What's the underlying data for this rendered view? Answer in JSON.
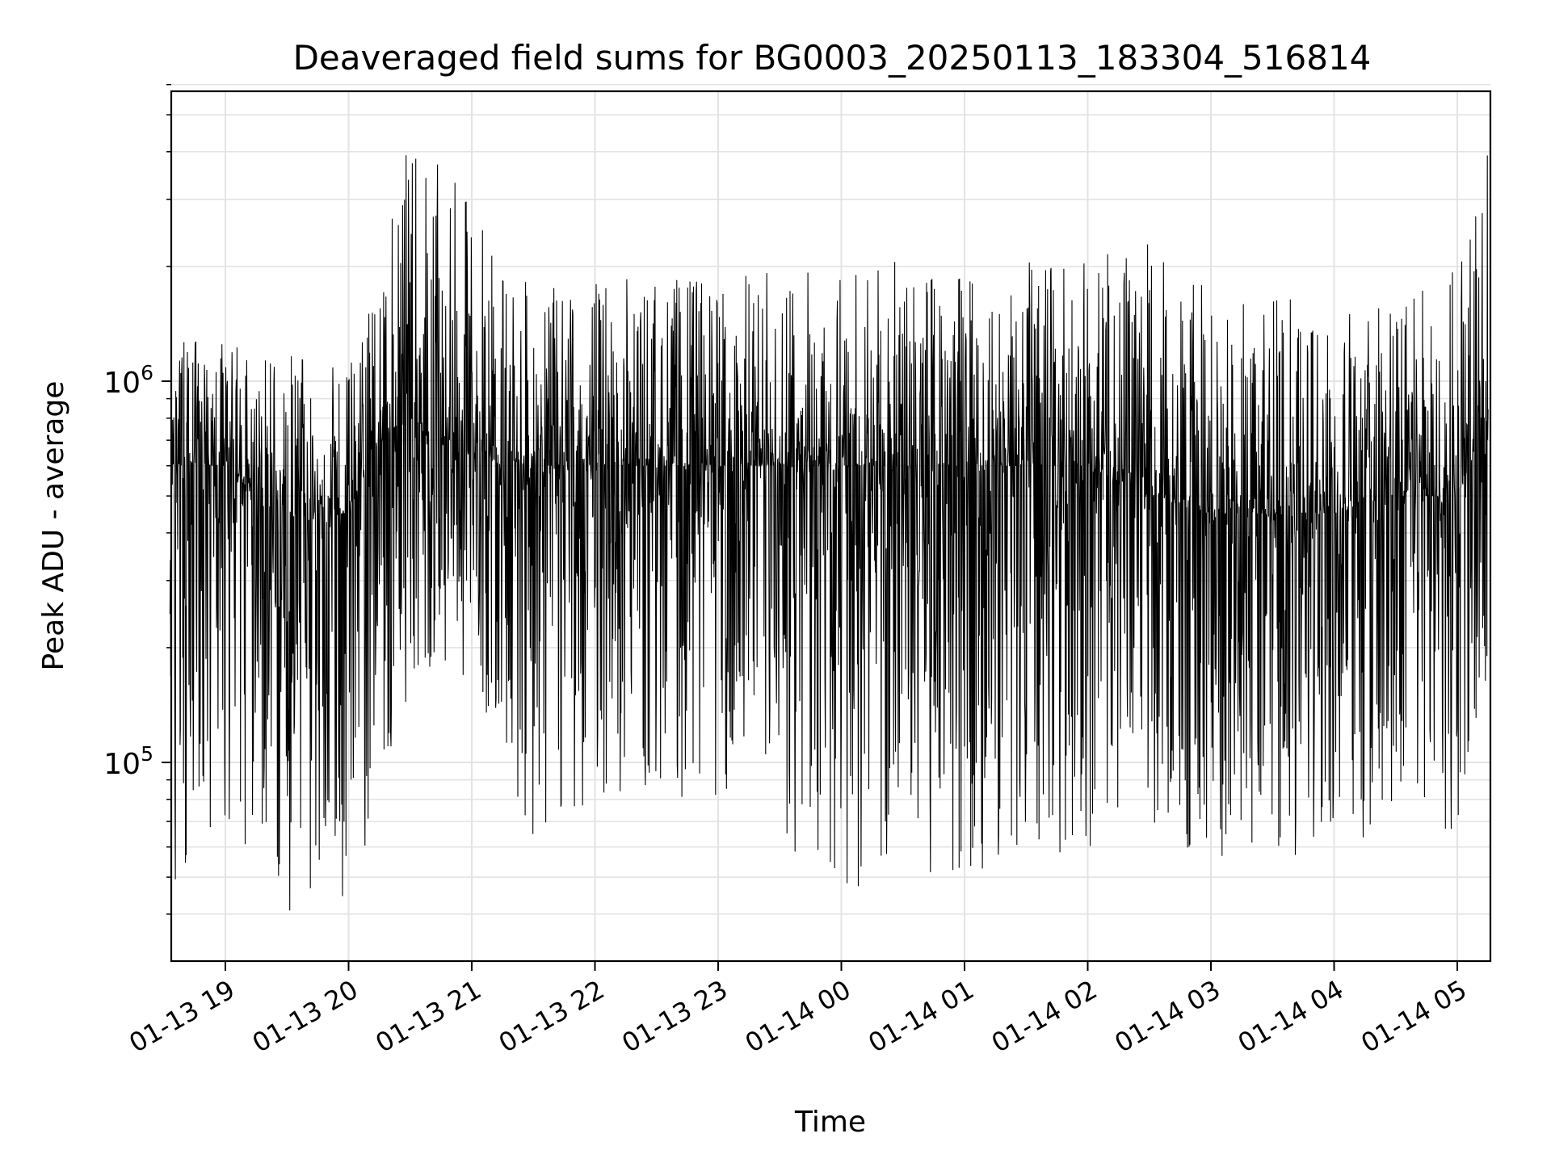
{
  "chart_data": {
    "type": "line",
    "title": "Deaveraged field sums for BG0003_20250113_183304_516814",
    "xlabel": "Time",
    "ylabel": "Peak ADU - average",
    "yscale": "log",
    "ylim": [
      33000,
      6200000
    ],
    "xlim": [
      "01-13 18:33",
      "01-14 05:15"
    ],
    "grid": true,
    "line_color": "#000000",
    "x_ticks": [
      {
        "label": "01-13 19",
        "hour": 19
      },
      {
        "label": "01-13 20",
        "hour": 20
      },
      {
        "label": "01-13 21",
        "hour": 21
      },
      {
        "label": "01-13 22",
        "hour": 22
      },
      {
        "label": "01-13 23",
        "hour": 23
      },
      {
        "label": "01-14 00",
        "hour": 24
      },
      {
        "label": "01-14 01",
        "hour": 25
      },
      {
        "label": "01-14 02",
        "hour": 26
      },
      {
        "label": "01-14 03",
        "hour": 27
      },
      {
        "label": "01-14 04",
        "hour": 28
      },
      {
        "label": "01-14 05",
        "hour": 29
      }
    ],
    "y_ticks": [
      {
        "base": "10",
        "exp": "5",
        "value": 100000
      },
      {
        "base": "10",
        "exp": "6",
        "value": 1000000
      }
    ],
    "series_envelope": {
      "description_x": [
        "01-13 18:33",
        "01-13 19:00",
        "01-13 19:30",
        "01-13 20:00",
        "01-13 20:15",
        "01-13 20:30",
        "01-13 21:00",
        "01-13 21:30",
        "01-13 22:00",
        "01-13 23:00",
        "01-14 00:00",
        "01-14 01:00",
        "01-14 02:00",
        "01-14 02:30",
        "01-14 03:00",
        "01-14 03:30",
        "01-14 04:00",
        "01-14 04:30",
        "01-14 05:00",
        "01-14 05:15"
      ],
      "typical_center": [
        600000,
        600000,
        450000,
        450000,
        700000,
        800000,
        650000,
        600000,
        600000,
        600000,
        600000,
        600000,
        600000,
        500000,
        450000,
        450000,
        450000,
        500000,
        500000,
        800000
      ],
      "peak_high": [
        1300000,
        1300000,
        1200000,
        1100000,
        2000000,
        4400000,
        3000000,
        1700000,
        1900000,
        1900000,
        2100000,
        2000000,
        2100000,
        2400000,
        1700000,
        1700000,
        1700000,
        1600000,
        2000000,
        5600000
      ],
      "peak_low": [
        40000,
        70000,
        40000,
        45000,
        75000,
        160000,
        170000,
        60000,
        80000,
        80000,
        45000,
        50000,
        60000,
        65000,
        55000,
        55000,
        50000,
        50000,
        60000,
        150000
      ]
    }
  }
}
